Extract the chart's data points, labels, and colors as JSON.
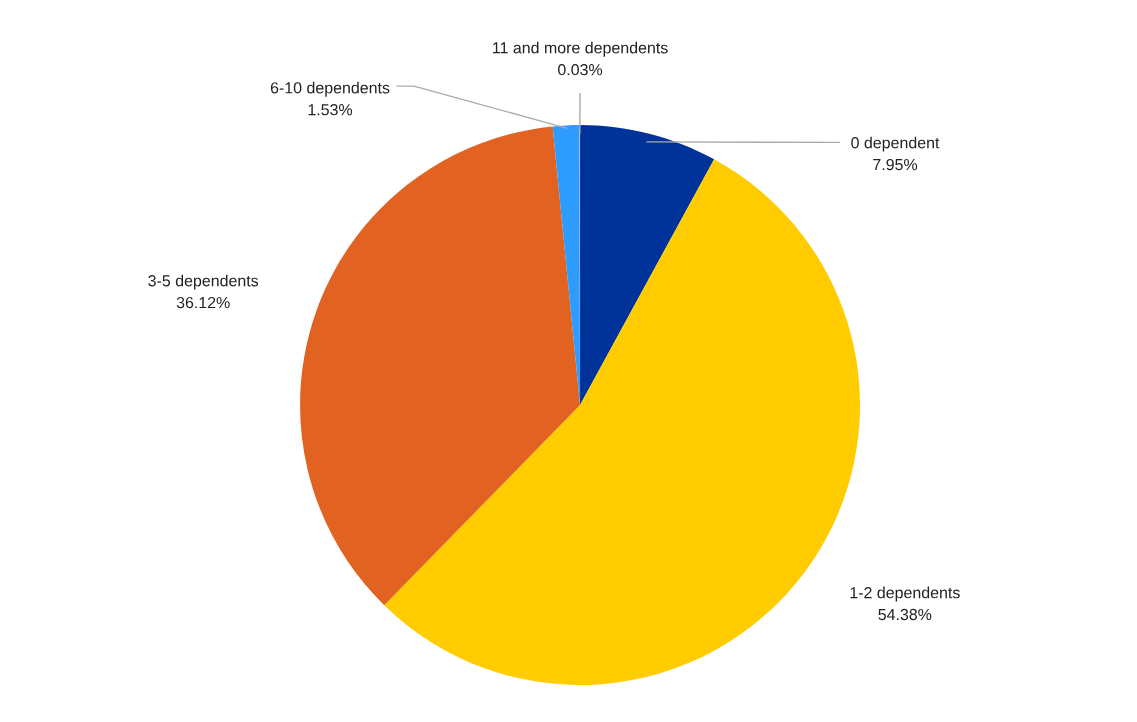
{
  "chart_data": {
    "type": "pie",
    "categories": [
      "0 dependent",
      "1-2 dependents",
      "3-5 dependents",
      "6-10 dependents",
      "11 and more dependents"
    ],
    "values": [
      7.95,
      54.38,
      36.12,
      1.53,
      0.03
    ],
    "colors": [
      "#003399",
      "#ffcc00",
      "#e26321",
      "#2e9bff",
      "#f4a6c8"
    ],
    "value_labels": [
      "7.95%",
      "54.38%",
      "36.12%",
      "1.53%",
      "0.03%"
    ]
  }
}
